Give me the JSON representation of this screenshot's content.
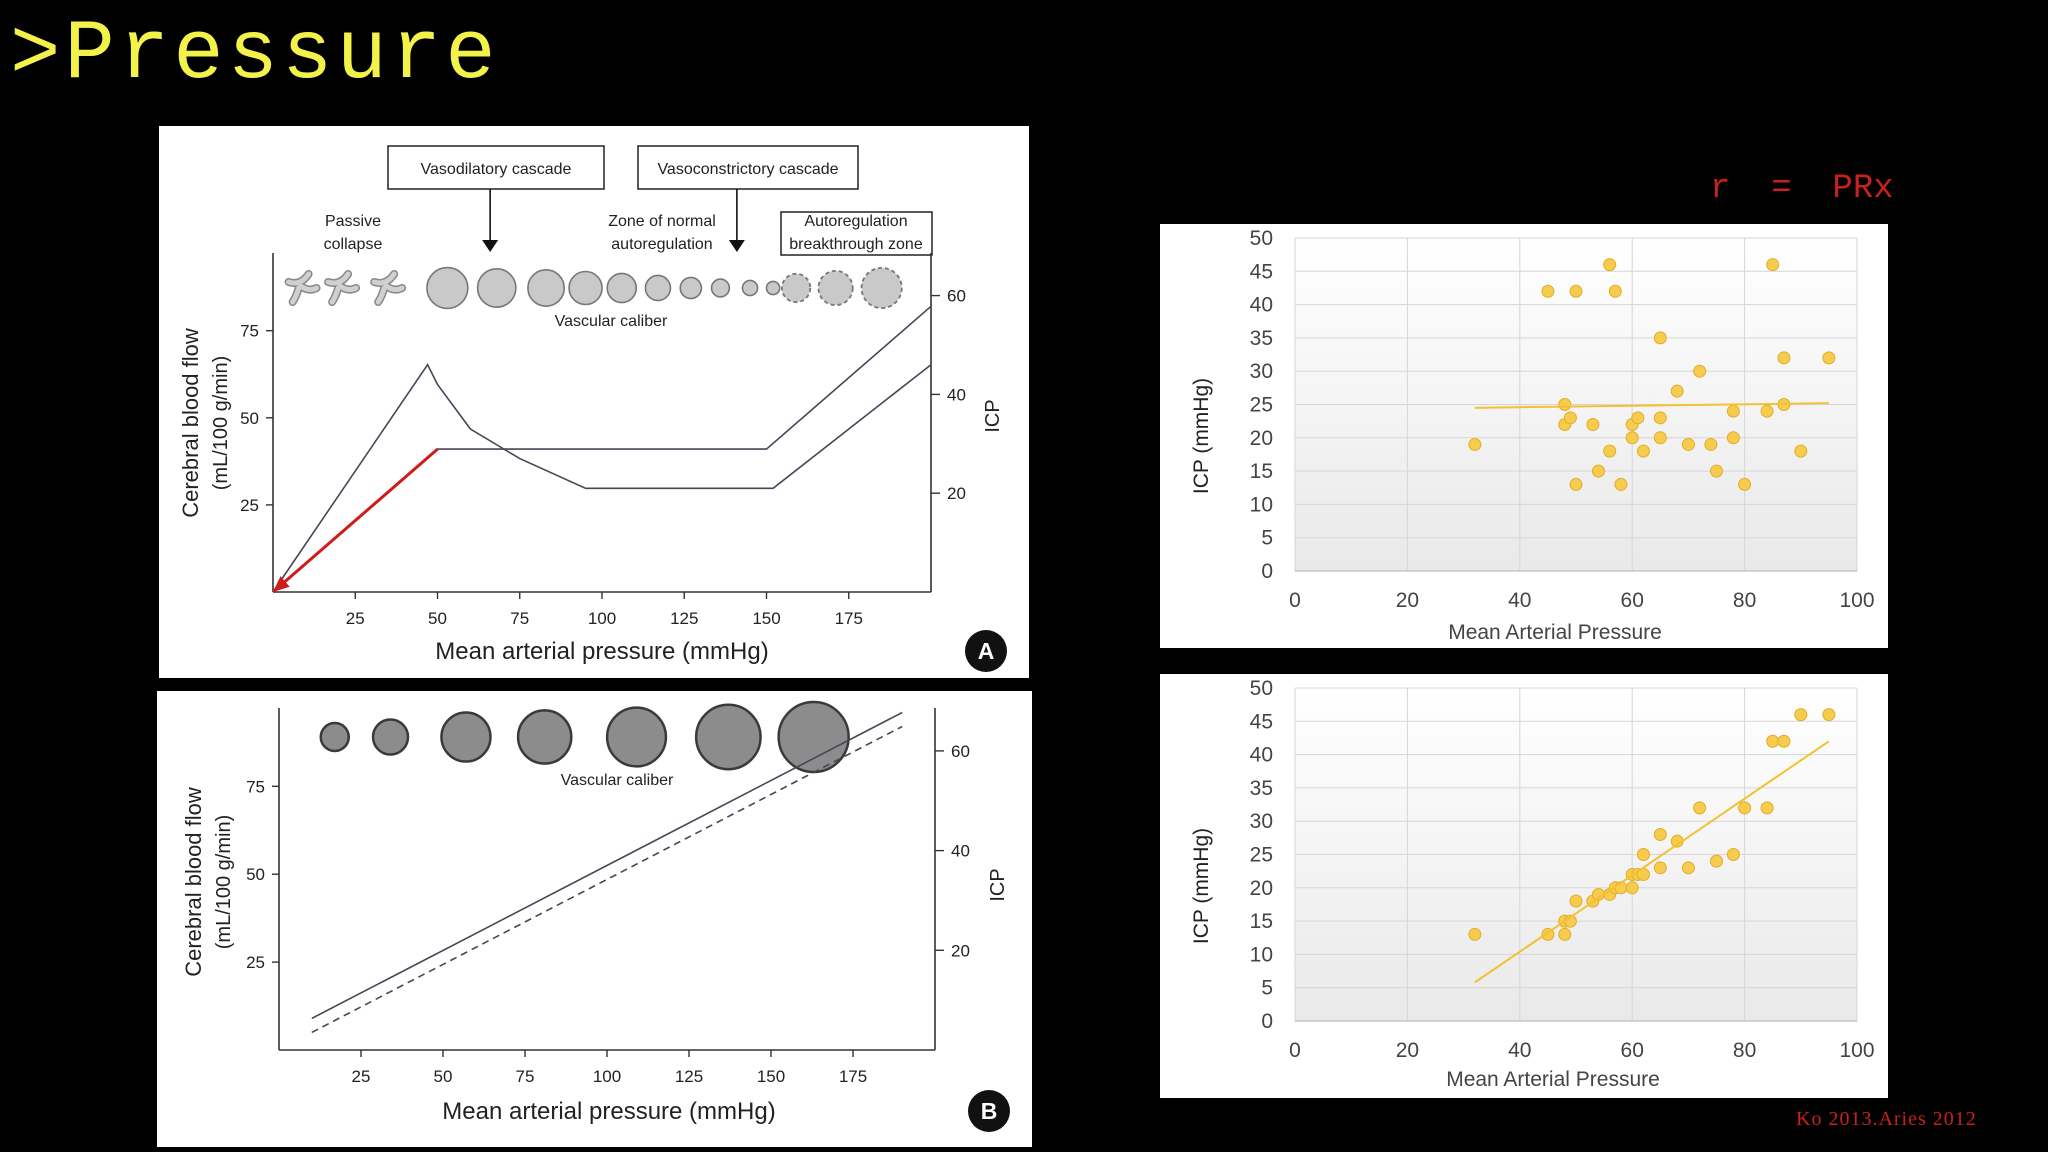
{
  "slide": {
    "title": ">Pressure",
    "r_label": "r  =  PRx",
    "citation": "Ko 2013.Aries 2012"
  },
  "colors": {
    "background": "#000000",
    "title": "#f2f24a",
    "accent_red": "#c8211c",
    "scatter_point": "#f7cb4d",
    "scatter_point_stroke": "#e0ae2a",
    "trendline": "#f2c230",
    "vessel_fill": "#c9c9c9",
    "vessel_fill_dark": "#8c8c8c"
  },
  "chart_data": [
    {
      "id": "panel-a",
      "type": "line",
      "panel_letter": "A",
      "xlabel": "Mean arterial pressure (mmHg)",
      "ylabel_line1": "Cerebral blood flow",
      "ylabel_line2": "(mL/100 g/min)",
      "y2label": "ICP",
      "xlim": [
        0,
        200
      ],
      "x_ticks": [
        25,
        50,
        75,
        100,
        125,
        150,
        175
      ],
      "ylim": [
        0,
        95
      ],
      "y_ticks": [
        25,
        50,
        75
      ],
      "y2lim": [
        0,
        67
      ],
      "y2_ticks": [
        20,
        40,
        60
      ],
      "boxes": [
        {
          "label": "Vasodilatory cascade",
          "arrow_x": 66
        },
        {
          "label": "Vasoconstrictory cascade",
          "arrow_x": 141
        }
      ],
      "zones": [
        {
          "line1": "Passive",
          "line2": "collapse",
          "x": 24
        },
        {
          "line1": "Zone of normal",
          "line2": "autoregulation",
          "x": 115
        },
        {
          "line1": "Autoregulation",
          "line2": "breakthrough zone",
          "x": 172
        }
      ],
      "vessel_label": "Vascular caliber",
      "vessels": [
        {
          "x": 9,
          "kind": "collapsed"
        },
        {
          "x": 21,
          "kind": "collapsed"
        },
        {
          "x": 35,
          "kind": "collapsed"
        },
        {
          "x": 53,
          "kind": "circle",
          "size": 6.2
        },
        {
          "x": 68,
          "kind": "circle",
          "size": 5.8
        },
        {
          "x": 83,
          "kind": "circle",
          "size": 5.5
        },
        {
          "x": 95,
          "kind": "circle",
          "size": 5.0
        },
        {
          "x": 106,
          "kind": "circle",
          "size": 4.4
        },
        {
          "x": 117,
          "kind": "circle",
          "size": 3.8
        },
        {
          "x": 127,
          "kind": "circle",
          "size": 3.2
        },
        {
          "x": 136,
          "kind": "circle",
          "size": 2.7
        },
        {
          "x": 145,
          "kind": "circle",
          "size": 2.3
        },
        {
          "x": 152,
          "kind": "circle",
          "size": 2.0
        },
        {
          "x": 159,
          "kind": "dashed",
          "size": 4.3
        },
        {
          "x": 171,
          "kind": "dashed",
          "size": 5.2
        },
        {
          "x": 185,
          "kind": "dashed",
          "size": 6.1
        }
      ],
      "series": [
        {
          "name": "CBF",
          "axis": "left",
          "style": "solid",
          "x": [
            0,
            50,
            150,
            200
          ],
          "y": [
            0,
            41,
            41,
            82
          ]
        },
        {
          "name": "ICP",
          "axis": "right",
          "style": "solid",
          "x": [
            0,
            47,
            50,
            60,
            75,
            95,
            152,
            200
          ],
          "y": [
            0,
            46,
            42,
            33,
            27,
            21,
            21,
            46
          ]
        },
        {
          "name": "arrow",
          "axis": "left",
          "style": "arrow",
          "color": "#d11a1a",
          "x": [
            50,
            0
          ],
          "y": [
            41,
            0
          ]
        }
      ]
    },
    {
      "id": "panel-b",
      "type": "line",
      "panel_letter": "B",
      "xlabel": "Mean arterial pressure (mmHg)",
      "ylabel_line1": "Cerebral blood flow",
      "ylabel_line2": "(mL/100 g/min)",
      "y2label": "ICP",
      "xlim": [
        0,
        200
      ],
      "x_ticks": [
        25,
        50,
        75,
        100,
        125,
        150,
        175
      ],
      "ylim": [
        0,
        95
      ],
      "y_ticks": [
        25,
        50,
        75
      ],
      "y2lim": [
        0,
        67
      ],
      "y2_ticks": [
        20,
        40,
        60
      ],
      "vessel_label": "Vascular caliber",
      "vessels": [
        {
          "x": 17,
          "kind": "filled",
          "size": 1.0
        },
        {
          "x": 34,
          "kind": "filled",
          "size": 1.5
        },
        {
          "x": 57,
          "kind": "filled",
          "size": 2.5
        },
        {
          "x": 81,
          "kind": "filled",
          "size": 2.8
        },
        {
          "x": 109,
          "kind": "filled",
          "size": 3.2
        },
        {
          "x": 137,
          "kind": "filled",
          "size": 3.6
        },
        {
          "x": 163,
          "kind": "filled",
          "size": 4.0
        }
      ],
      "series": [
        {
          "name": "CBF",
          "axis": "left",
          "style": "solid",
          "x": [
            10,
            190
          ],
          "y": [
            9,
            96
          ]
        },
        {
          "name": "ICP",
          "axis": "left",
          "style": "dashed",
          "x": [
            10,
            190
          ],
          "y": [
            5,
            92
          ]
        }
      ]
    },
    {
      "id": "scatter-top",
      "type": "scatter",
      "xlabel": "Mean Arterial Pressure",
      "ylabel": "ICP (mmHg)",
      "xlim": [
        0,
        100
      ],
      "x_ticks": [
        0,
        20,
        40,
        60,
        80,
        100
      ],
      "ylim": [
        0,
        50
      ],
      "y_ticks": [
        0,
        5,
        10,
        15,
        20,
        25,
        30,
        35,
        40,
        45,
        50
      ],
      "points": [
        [
          32,
          19
        ],
        [
          45,
          42
        ],
        [
          48,
          25
        ],
        [
          48,
          22
        ],
        [
          49,
          23
        ],
        [
          50,
          13
        ],
        [
          50,
          42
        ],
        [
          53,
          22
        ],
        [
          54,
          15
        ],
        [
          56,
          18
        ],
        [
          56,
          46
        ],
        [
          57,
          42
        ],
        [
          58,
          13
        ],
        [
          60,
          22
        ],
        [
          60,
          20
        ],
        [
          61,
          23
        ],
        [
          62,
          18
        ],
        [
          65,
          35
        ],
        [
          65,
          23
        ],
        [
          65,
          20
        ],
        [
          68,
          27
        ],
        [
          70,
          19
        ],
        [
          72,
          30
        ],
        [
          74,
          19
        ],
        [
          75,
          15
        ],
        [
          78,
          24
        ],
        [
          78,
          20
        ],
        [
          80,
          13
        ],
        [
          84,
          24
        ],
        [
          85,
          46
        ],
        [
          87,
          32
        ],
        [
          87,
          25
        ],
        [
          90,
          18
        ],
        [
          95,
          32
        ]
      ],
      "trendline": {
        "x": [
          32,
          95
        ],
        "y": [
          24.5,
          25.2
        ]
      }
    },
    {
      "id": "scatter-bottom",
      "type": "scatter",
      "xlabel": "Mean Arterial Pressure",
      "ylabel": "ICP (mmHg)",
      "xlim": [
        0,
        100
      ],
      "x_ticks": [
        0,
        20,
        40,
        60,
        80,
        100
      ],
      "ylim": [
        0,
        50
      ],
      "y_ticks": [
        0,
        5,
        10,
        15,
        20,
        25,
        30,
        35,
        40,
        45,
        50
      ],
      "points": [
        [
          32,
          13
        ],
        [
          45,
          13
        ],
        [
          48,
          15
        ],
        [
          48,
          13
        ],
        [
          49,
          15
        ],
        [
          50,
          18
        ],
        [
          53,
          18
        ],
        [
          54,
          19
        ],
        [
          56,
          19
        ],
        [
          57,
          20
        ],
        [
          58,
          20
        ],
        [
          60,
          20
        ],
        [
          60,
          22
        ],
        [
          61,
          22
        ],
        [
          62,
          22
        ],
        [
          62,
          25
        ],
        [
          65,
          28
        ],
        [
          65,
          23
        ],
        [
          68,
          27
        ],
        [
          70,
          23
        ],
        [
          72,
          32
        ],
        [
          75,
          24
        ],
        [
          78,
          25
        ],
        [
          80,
          32
        ],
        [
          84,
          32
        ],
        [
          85,
          42
        ],
        [
          87,
          42
        ],
        [
          90,
          46
        ],
        [
          95,
          46
        ]
      ],
      "trendline": {
        "x": [
          32,
          95
        ],
        "y": [
          5.8,
          42.0
        ]
      }
    }
  ]
}
